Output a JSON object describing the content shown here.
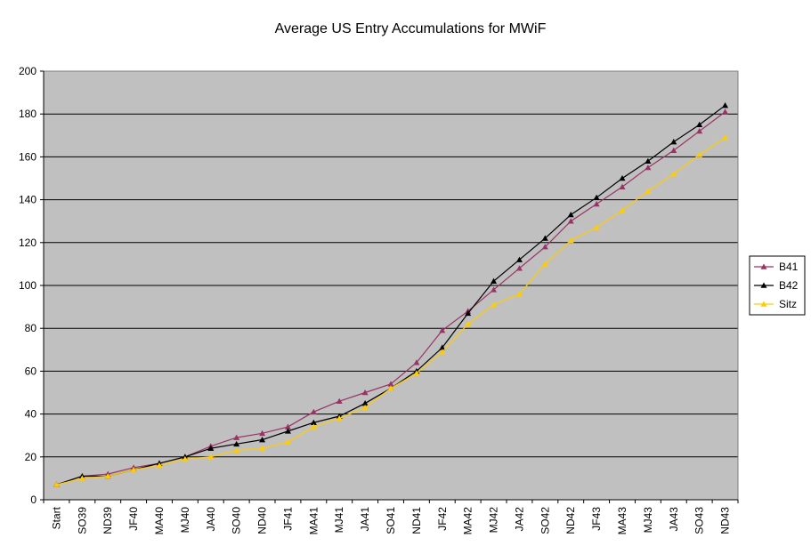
{
  "chart_data": {
    "type": "line",
    "title": "Average US Entry Accumulations for MWiF",
    "xlabel": "",
    "ylabel": "",
    "ylim": [
      0,
      200
    ],
    "yticks": [
      0,
      20,
      40,
      60,
      80,
      100,
      120,
      140,
      160,
      180,
      200
    ],
    "grid": true,
    "legend_position": "right",
    "plot_background": "#c0c0c0",
    "categories": [
      "Start",
      "SO39",
      "ND39",
      "JF40",
      "MA40",
      "MJ40",
      "JA40",
      "SO40",
      "ND40",
      "JF41",
      "MA41",
      "MJ41",
      "JA41",
      "SO41",
      "ND41",
      "JF42",
      "MA42",
      "MJ42",
      "JA42",
      "SO42",
      "ND42",
      "JF43",
      "MA43",
      "MJ43",
      "JA43",
      "SO43",
      "ND43"
    ],
    "series": [
      {
        "name": "B41",
        "color": "#993366",
        "marker": "triangle",
        "values": [
          7,
          11,
          12,
          15,
          17,
          20,
          25,
          29,
          31,
          34,
          41,
          46,
          50,
          54,
          64,
          79,
          88,
          98,
          108,
          118,
          130,
          138,
          146,
          155,
          163,
          172,
          181
        ]
      },
      {
        "name": "B42",
        "color": "#000000",
        "marker": "triangle",
        "values": [
          7,
          11,
          11,
          14,
          17,
          20,
          24,
          26,
          28,
          32,
          36,
          39,
          45,
          52,
          60,
          71,
          87,
          102,
          112,
          122,
          133,
          141,
          150,
          158,
          167,
          175,
          184
        ]
      },
      {
        "name": "Sitz",
        "color": "#ffcc00",
        "marker": "triangle",
        "values": [
          7,
          10,
          11,
          14,
          16,
          19,
          20,
          23,
          24,
          27,
          34,
          38,
          43,
          52,
          59,
          69,
          82,
          91,
          96,
          110,
          121,
          127,
          135,
          144,
          152,
          161,
          169
        ]
      }
    ]
  }
}
